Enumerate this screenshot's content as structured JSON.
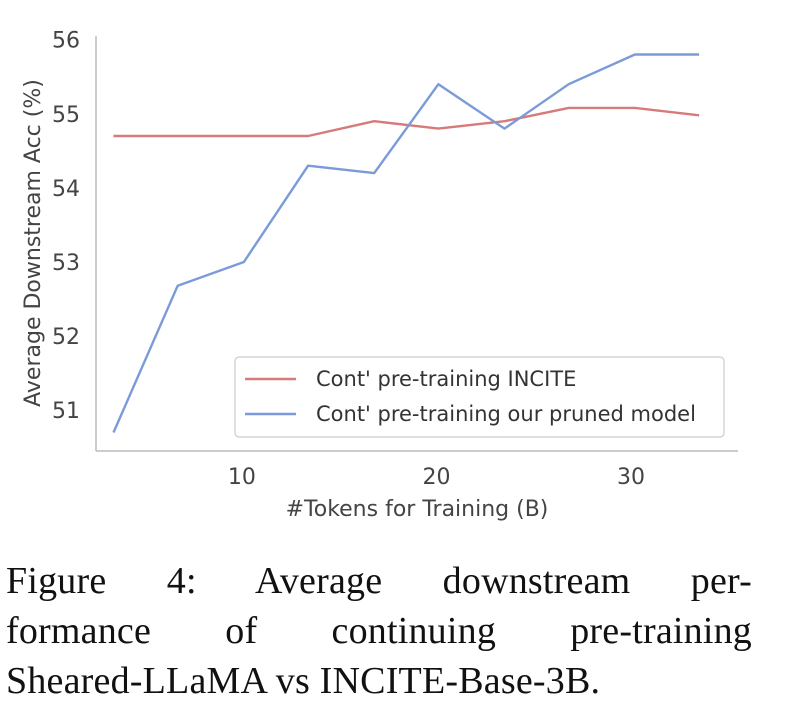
{
  "chart_data": {
    "type": "line",
    "title": "",
    "xlabel": "#Tokens for Training (B)",
    "ylabel": "Average Downstream Acc (%)",
    "xlim": [
      2.5,
      35.5
    ],
    "ylim": [
      50.45,
      56.05
    ],
    "xticks": [
      10,
      20,
      30
    ],
    "yticks": [
      51,
      52,
      53,
      54,
      55,
      56
    ],
    "grid": false,
    "legend_position": "lower-right",
    "series": [
      {
        "name": "Cont' pre-training INCITE",
        "color": "#d67a7a",
        "x": [
          3.4,
          6.7,
          10.1,
          13.4,
          16.8,
          20.1,
          23.5,
          26.8,
          30.2,
          33.5
        ],
        "y": [
          54.7,
          54.7,
          54.7,
          54.7,
          54.9,
          54.8,
          54.9,
          55.08,
          55.08,
          54.98
        ]
      },
      {
        "name": "Cont' pre-training our pruned model",
        "color": "#7b9bd8",
        "x": [
          3.4,
          6.7,
          10.1,
          13.4,
          16.8,
          20.1,
          23.5,
          26.8,
          30.2,
          33.5
        ],
        "y": [
          50.7,
          52.68,
          53.0,
          54.3,
          54.2,
          55.4,
          54.8,
          55.4,
          55.8,
          55.8
        ]
      }
    ]
  },
  "caption": {
    "lines": [
      "Figure 4:  Average downstream per-",
      "formance of continuing pre-training",
      "Sheared-LLaMA vs INCITE-Base-3B."
    ]
  }
}
